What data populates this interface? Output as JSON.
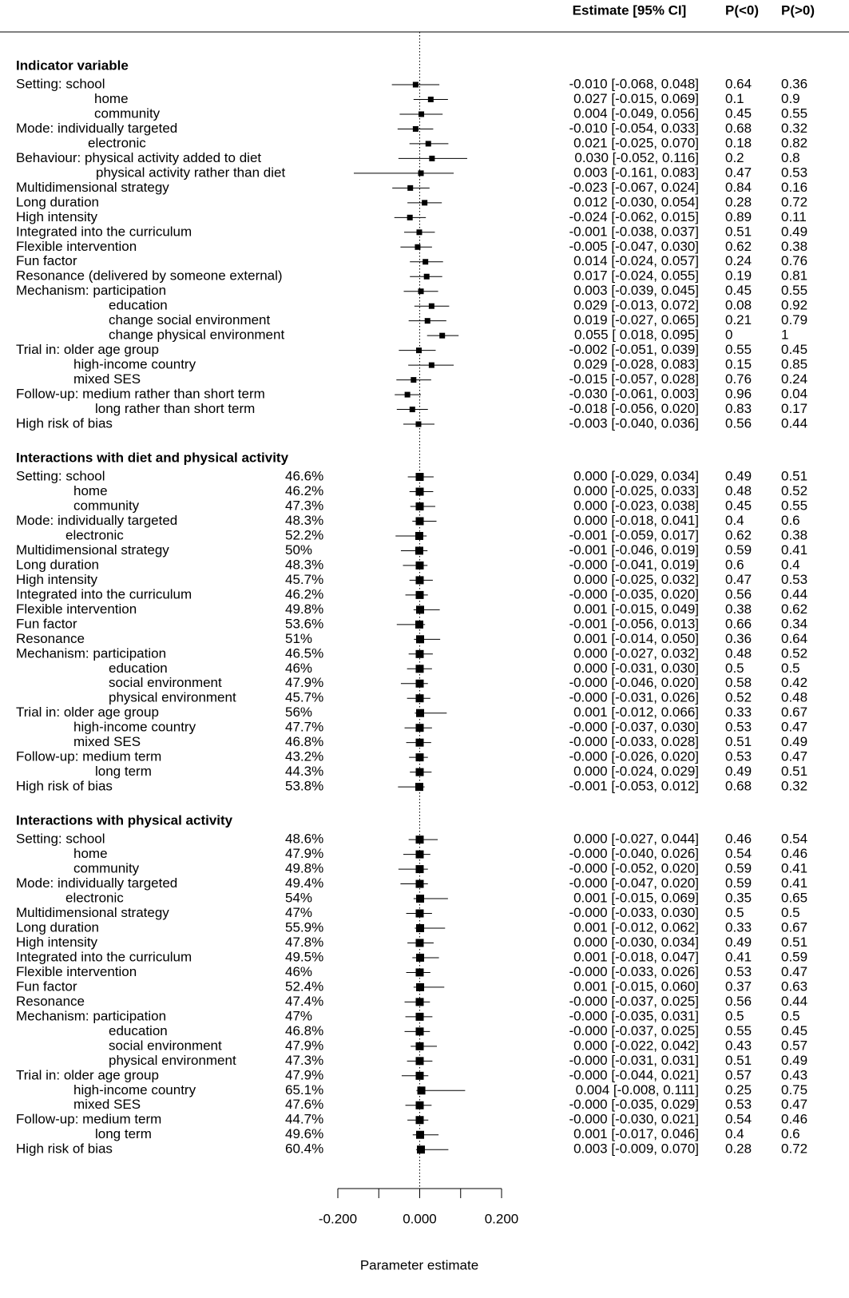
{
  "chart_data": {
    "type": "forest",
    "columns": [
      "Estimate [95% CI]",
      "P(<0)",
      "P(>0)"
    ],
    "xlabel": "Parameter estimate",
    "xlim": [
      -0.2,
      0.2
    ],
    "xticks": [
      {
        "value": -0.2,
        "label": "-0.200"
      },
      {
        "value": -0.1,
        "label": null
      },
      {
        "value": 0,
        "label": "0.000"
      },
      {
        "value": 0.1,
        "label": null
      },
      {
        "value": 0.2,
        "label": "0.200"
      }
    ],
    "reference_line": 0,
    "sections": [
      {
        "title": "Indicator variable",
        "rows": [
          {
            "label": "Setting: school",
            "ci": "-0.010 [-0.068, 0.048]",
            "est": -0.01,
            "lo": -0.068,
            "hi": 0.048,
            "p_lt": 0.64,
            "p_gt": 0.36
          },
          {
            "label": "home",
            "ci": "0.027 [-0.015, 0.069]",
            "est": 0.027,
            "lo": -0.015,
            "hi": 0.069,
            "p_lt": 0.1,
            "p_gt": 0.9
          },
          {
            "label": "community",
            "ci": "0.004 [-0.049, 0.056]",
            "est": 0.004,
            "lo": -0.049,
            "hi": 0.056,
            "p_lt": 0.45,
            "p_gt": 0.55
          },
          {
            "label": "Mode: individually targeted",
            "ci": "-0.010 [-0.054, 0.033]",
            "est": -0.01,
            "lo": -0.054,
            "hi": 0.033,
            "p_lt": 0.68,
            "p_gt": 0.32
          },
          {
            "label": "electronic",
            "ci": "0.021 [-0.025, 0.070]",
            "est": 0.021,
            "lo": -0.025,
            "hi": 0.07,
            "p_lt": 0.18,
            "p_gt": 0.82
          },
          {
            "label": "Behaviour: physical activity added to diet",
            "ci": "0.030 [-0.052, 0.116]",
            "est": 0.03,
            "lo": -0.052,
            "hi": 0.116,
            "p_lt": 0.2,
            "p_gt": 0.8
          },
          {
            "label": "physical activity rather than diet",
            "ci": "0.003 [-0.161, 0.083]",
            "est": 0.003,
            "lo": -0.161,
            "hi": 0.083,
            "p_lt": 0.47,
            "p_gt": 0.53
          },
          {
            "label": "Multidimensional strategy",
            "ci": "-0.023 [-0.067, 0.024]",
            "est": -0.023,
            "lo": -0.067,
            "hi": 0.024,
            "p_lt": 0.84,
            "p_gt": 0.16
          },
          {
            "label": "Long duration",
            "ci": "0.012 [-0.030, 0.054]",
            "est": 0.012,
            "lo": -0.03,
            "hi": 0.054,
            "p_lt": 0.28,
            "p_gt": 0.72
          },
          {
            "label": "High intensity",
            "ci": "-0.024 [-0.062, 0.015]",
            "est": -0.024,
            "lo": -0.062,
            "hi": 0.015,
            "p_lt": 0.89,
            "p_gt": 0.11
          },
          {
            "label": "Integrated into the curriculum",
            "ci": "-0.001 [-0.038, 0.037]",
            "est": -0.001,
            "lo": -0.038,
            "hi": 0.037,
            "p_lt": 0.51,
            "p_gt": 0.49
          },
          {
            "label": "Flexible intervention",
            "ci": "-0.005 [-0.047, 0.030]",
            "est": -0.005,
            "lo": -0.047,
            "hi": 0.03,
            "p_lt": 0.62,
            "p_gt": 0.38
          },
          {
            "label": "Fun factor",
            "ci": "0.014 [-0.024, 0.057]",
            "est": 0.014,
            "lo": -0.024,
            "hi": 0.057,
            "p_lt": 0.24,
            "p_gt": 0.76
          },
          {
            "label": "Resonance (delivered by someone external)",
            "ci": "0.017 [-0.024, 0.055]",
            "est": 0.017,
            "lo": -0.024,
            "hi": 0.055,
            "p_lt": 0.19,
            "p_gt": 0.81
          },
          {
            "label": "Mechanism: participation",
            "ci": "0.003 [-0.039, 0.045]",
            "est": 0.003,
            "lo": -0.039,
            "hi": 0.045,
            "p_lt": 0.45,
            "p_gt": 0.55
          },
          {
            "label": "education",
            "ci": "0.029 [-0.013, 0.072]",
            "est": 0.029,
            "lo": -0.013,
            "hi": 0.072,
            "p_lt": 0.08,
            "p_gt": 0.92
          },
          {
            "label": "change social environment",
            "ci": "0.019 [-0.027, 0.065]",
            "est": 0.019,
            "lo": -0.027,
            "hi": 0.065,
            "p_lt": 0.21,
            "p_gt": 0.79
          },
          {
            "label": "change physical environment",
            "ci": "0.055 [ 0.018, 0.095]",
            "est": 0.055,
            "lo": 0.018,
            "hi": 0.095,
            "p_lt": 0,
            "p_gt": 1
          },
          {
            "label": "Trial in: older age group",
            "ci": "-0.002 [-0.051, 0.039]",
            "est": -0.002,
            "lo": -0.051,
            "hi": 0.039,
            "p_lt": 0.55,
            "p_gt": 0.45
          },
          {
            "label": "high-income country",
            "ci": "0.029 [-0.028, 0.083]",
            "est": 0.029,
            "lo": -0.028,
            "hi": 0.083,
            "p_lt": 0.15,
            "p_gt": 0.85
          },
          {
            "label": "mixed SES",
            "ci": "-0.015 [-0.057, 0.028]",
            "est": -0.015,
            "lo": -0.057,
            "hi": 0.028,
            "p_lt": 0.76,
            "p_gt": 0.24
          },
          {
            "label": "Follow-up: medium rather than short term",
            "ci": "-0.030 [-0.061, 0.003]",
            "est": -0.03,
            "lo": -0.061,
            "hi": 0.003,
            "p_lt": 0.96,
            "p_gt": 0.04
          },
          {
            "label": "long rather than short term",
            "ci": "-0.018 [-0.056, 0.020]",
            "est": -0.018,
            "lo": -0.056,
            "hi": 0.02,
            "p_lt": 0.83,
            "p_gt": 0.17
          },
          {
            "label": "High risk of bias",
            "ci": "-0.003 [-0.040, 0.036]",
            "est": -0.003,
            "lo": -0.04,
            "hi": 0.036,
            "p_lt": 0.56,
            "p_gt": 0.44
          }
        ]
      },
      {
        "title": "Interactions with diet and physical activity",
        "rows": [
          {
            "label": "Setting: school",
            "share": "46.6%",
            "ci": "0.000 [-0.029, 0.034]",
            "est": 0,
            "lo": -0.029,
            "hi": 0.034,
            "p_lt": 0.49,
            "p_gt": 0.51
          },
          {
            "label": "home",
            "share": "46.2%",
            "ci": "0.000 [-0.025, 0.033]",
            "est": 0,
            "lo": -0.025,
            "hi": 0.033,
            "p_lt": 0.48,
            "p_gt": 0.52
          },
          {
            "label": "community",
            "share": "47.3%",
            "ci": "0.000 [-0.023, 0.038]",
            "est": 0,
            "lo": -0.023,
            "hi": 0.038,
            "p_lt": 0.45,
            "p_gt": 0.55
          },
          {
            "label": "Mode: individually targeted",
            "share": "48.3%",
            "ci": "0.000 [-0.018, 0.041]",
            "est": 0,
            "lo": -0.018,
            "hi": 0.041,
            "p_lt": 0.4,
            "p_gt": 0.6
          },
          {
            "label": "electronic",
            "share": "52.2%",
            "ci": "-0.001 [-0.059, 0.017]",
            "est": -0.001,
            "lo": -0.059,
            "hi": 0.017,
            "p_lt": 0.62,
            "p_gt": 0.38
          },
          {
            "label": "Multidimensional strategy",
            "share": "50%",
            "ci": "-0.001 [-0.046, 0.019]",
            "est": -0.001,
            "lo": -0.046,
            "hi": 0.019,
            "p_lt": 0.59,
            "p_gt": 0.41
          },
          {
            "label": "Long duration",
            "share": "48.3%",
            "ci": "-0.000 [-0.041, 0.019]",
            "est": 0,
            "lo": -0.041,
            "hi": 0.019,
            "p_lt": 0.6,
            "p_gt": 0.4
          },
          {
            "label": "High intensity",
            "share": "45.7%",
            "ci": "0.000 [-0.025, 0.032]",
            "est": 0,
            "lo": -0.025,
            "hi": 0.032,
            "p_lt": 0.47,
            "p_gt": 0.53
          },
          {
            "label": "Integrated into the curriculum",
            "share": "46.2%",
            "ci": "-0.000 [-0.035, 0.020]",
            "est": 0,
            "lo": -0.035,
            "hi": 0.02,
            "p_lt": 0.56,
            "p_gt": 0.44
          },
          {
            "label": "Flexible intervention",
            "share": "49.8%",
            "ci": "0.001 [-0.015, 0.049]",
            "est": 0.001,
            "lo": -0.015,
            "hi": 0.049,
            "p_lt": 0.38,
            "p_gt": 0.62
          },
          {
            "label": "Fun factor",
            "share": "53.6%",
            "ci": "-0.001 [-0.056, 0.013]",
            "est": -0.001,
            "lo": -0.056,
            "hi": 0.013,
            "p_lt": 0.66,
            "p_gt": 0.34
          },
          {
            "label": "Resonance",
            "share": "51%",
            "ci": "0.001 [-0.014, 0.050]",
            "est": 0.001,
            "lo": -0.014,
            "hi": 0.05,
            "p_lt": 0.36,
            "p_gt": 0.64
          },
          {
            "label": "Mechanism: participation",
            "share": "46.5%",
            "ci": "0.000 [-0.027, 0.032]",
            "est": 0,
            "lo": -0.027,
            "hi": 0.032,
            "p_lt": 0.48,
            "p_gt": 0.52
          },
          {
            "label": "education",
            "share": "46%",
            "ci": "0.000 [-0.031, 0.030]",
            "est": 0,
            "lo": -0.031,
            "hi": 0.03,
            "p_lt": 0.5,
            "p_gt": 0.5
          },
          {
            "label": "social environment",
            "share": "47.9%",
            "ci": "-0.000 [-0.046, 0.020]",
            "est": 0,
            "lo": -0.046,
            "hi": 0.02,
            "p_lt": 0.58,
            "p_gt": 0.42
          },
          {
            "label": "physical environment",
            "share": "45.7%",
            "ci": "-0.000 [-0.031, 0.026]",
            "est": 0,
            "lo": -0.031,
            "hi": 0.026,
            "p_lt": 0.52,
            "p_gt": 0.48
          },
          {
            "label": "Trial in: older age group",
            "share": "56%",
            "ci": "0.001 [-0.012, 0.066]",
            "est": 0.001,
            "lo": -0.012,
            "hi": 0.066,
            "p_lt": 0.33,
            "p_gt": 0.67
          },
          {
            "label": "high-income country",
            "share": "47.7%",
            "ci": "-0.000 [-0.037, 0.030]",
            "est": 0,
            "lo": -0.037,
            "hi": 0.03,
            "p_lt": 0.53,
            "p_gt": 0.47
          },
          {
            "label": "mixed SES",
            "share": "46.8%",
            "ci": "-0.000 [-0.033, 0.028]",
            "est": 0,
            "lo": -0.033,
            "hi": 0.028,
            "p_lt": 0.51,
            "p_gt": 0.49
          },
          {
            "label": "Follow-up: medium term",
            "share": "43.2%",
            "ci": "-0.000 [-0.026, 0.020]",
            "est": 0,
            "lo": -0.026,
            "hi": 0.02,
            "p_lt": 0.53,
            "p_gt": 0.47
          },
          {
            "label": "long term",
            "share": "44.3%",
            "ci": "0.000 [-0.024, 0.029]",
            "est": 0,
            "lo": -0.024,
            "hi": 0.029,
            "p_lt": 0.49,
            "p_gt": 0.51
          },
          {
            "label": "High risk of bias",
            "share": "53.8%",
            "ci": "-0.001 [-0.053, 0.012]",
            "est": -0.001,
            "lo": -0.053,
            "hi": 0.012,
            "p_lt": 0.68,
            "p_gt": 0.32
          }
        ]
      },
      {
        "title": "Interactions with physical activity",
        "rows": [
          {
            "label": "Setting: school",
            "share": "48.6%",
            "ci": "0.000 [-0.027, 0.044]",
            "est": 0,
            "lo": -0.027,
            "hi": 0.044,
            "p_lt": 0.46,
            "p_gt": 0.54
          },
          {
            "label": "home",
            "share": "47.9%",
            "ci": "-0.000 [-0.040, 0.026]",
            "est": 0,
            "lo": -0.04,
            "hi": 0.026,
            "p_lt": 0.54,
            "p_gt": 0.46
          },
          {
            "label": "community",
            "share": "49.8%",
            "ci": "-0.000 [-0.052, 0.020]",
            "est": 0,
            "lo": -0.052,
            "hi": 0.02,
            "p_lt": 0.59,
            "p_gt": 0.41
          },
          {
            "label": "Mode: individually targeted",
            "share": "49.4%",
            "ci": "-0.000 [-0.047, 0.020]",
            "est": 0,
            "lo": -0.047,
            "hi": 0.02,
            "p_lt": 0.59,
            "p_gt": 0.41
          },
          {
            "label": "electronic",
            "share": "54%",
            "ci": "0.001 [-0.015, 0.069]",
            "est": 0.001,
            "lo": -0.015,
            "hi": 0.069,
            "p_lt": 0.35,
            "p_gt": 0.65
          },
          {
            "label": "Multidimensional strategy",
            "share": "47%",
            "ci": "-0.000 [-0.033, 0.030]",
            "est": 0,
            "lo": -0.033,
            "hi": 0.03,
            "p_lt": 0.5,
            "p_gt": 0.5
          },
          {
            "label": "Long duration",
            "share": "55.9%",
            "ci": "0.001 [-0.012, 0.062]",
            "est": 0.001,
            "lo": -0.012,
            "hi": 0.062,
            "p_lt": 0.33,
            "p_gt": 0.67
          },
          {
            "label": "High intensity",
            "share": "47.8%",
            "ci": "0.000 [-0.030, 0.034]",
            "est": 0,
            "lo": -0.03,
            "hi": 0.034,
            "p_lt": 0.49,
            "p_gt": 0.51
          },
          {
            "label": "Integrated into the curriculum",
            "share": "49.5%",
            "ci": "0.001 [-0.018, 0.047]",
            "est": 0.001,
            "lo": -0.018,
            "hi": 0.047,
            "p_lt": 0.41,
            "p_gt": 0.59
          },
          {
            "label": "Flexible intervention",
            "share": "46%",
            "ci": "-0.000 [-0.033, 0.026]",
            "est": 0,
            "lo": -0.033,
            "hi": 0.026,
            "p_lt": 0.53,
            "p_gt": 0.47
          },
          {
            "label": "Fun factor",
            "share": "52.4%",
            "ci": "0.001 [-0.015, 0.060]",
            "est": 0.001,
            "lo": -0.015,
            "hi": 0.06,
            "p_lt": 0.37,
            "p_gt": 0.63
          },
          {
            "label": "Resonance",
            "share": "47.4%",
            "ci": "-0.000 [-0.037, 0.025]",
            "est": 0,
            "lo": -0.037,
            "hi": 0.025,
            "p_lt": 0.56,
            "p_gt": 0.44
          },
          {
            "label": "Mechanism: participation",
            "share": "47%",
            "ci": "-0.000 [-0.035, 0.031]",
            "est": 0,
            "lo": -0.035,
            "hi": 0.031,
            "p_lt": 0.5,
            "p_gt": 0.5
          },
          {
            "label": "education",
            "share": "46.8%",
            "ci": "-0.000 [-0.037, 0.025]",
            "est": 0,
            "lo": -0.037,
            "hi": 0.025,
            "p_lt": 0.55,
            "p_gt": 0.45
          },
          {
            "label": "social environment",
            "share": "47.9%",
            "ci": "0.000 [-0.022, 0.042]",
            "est": 0,
            "lo": -0.022,
            "hi": 0.042,
            "p_lt": 0.43,
            "p_gt": 0.57
          },
          {
            "label": "physical environment",
            "share": "47.3%",
            "ci": "-0.000 [-0.031, 0.031]",
            "est": 0,
            "lo": -0.031,
            "hi": 0.031,
            "p_lt": 0.51,
            "p_gt": 0.49
          },
          {
            "label": "Trial in: older age group",
            "share": "47.9%",
            "ci": "-0.000 [-0.044, 0.021]",
            "est": 0,
            "lo": -0.044,
            "hi": 0.021,
            "p_lt": 0.57,
            "p_gt": 0.43
          },
          {
            "label": "high-income country",
            "share": "65.1%",
            "ci": "0.004 [-0.008, 0.111]",
            "est": 0.004,
            "lo": -0.008,
            "hi": 0.111,
            "p_lt": 0.25,
            "p_gt": 0.75
          },
          {
            "label": "mixed SES",
            "share": "47.6%",
            "ci": "-0.000 [-0.035, 0.029]",
            "est": 0,
            "lo": -0.035,
            "hi": 0.029,
            "p_lt": 0.53,
            "p_gt": 0.47
          },
          {
            "label": "Follow-up: medium term",
            "share": "44.7%",
            "ci": "-0.000 [-0.030, 0.021]",
            "est": 0,
            "lo": -0.03,
            "hi": 0.021,
            "p_lt": 0.54,
            "p_gt": 0.46
          },
          {
            "label": "long term",
            "share": "49.6%",
            "ci": "0.001 [-0.017, 0.046]",
            "est": 0.001,
            "lo": -0.017,
            "hi": 0.046,
            "p_lt": 0.4,
            "p_gt": 0.6
          },
          {
            "label": "High risk of bias",
            "share": "60.4%",
            "ci": "0.003 [-0.009, 0.070]",
            "est": 0.003,
            "lo": -0.009,
            "hi": 0.07,
            "p_lt": 0.28,
            "p_gt": 0.72
          }
        ]
      }
    ]
  }
}
